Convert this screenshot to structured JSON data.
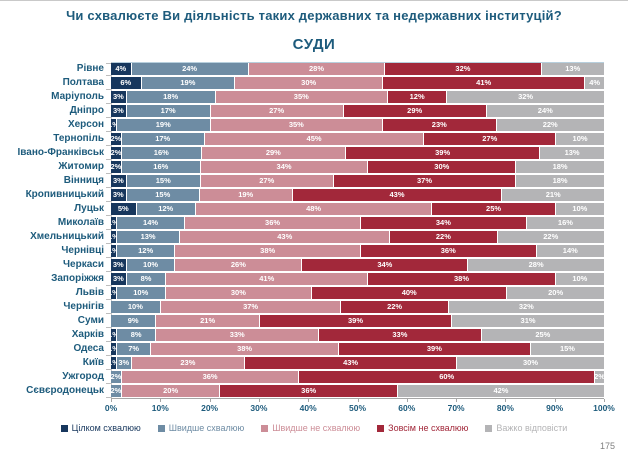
{
  "title": "Чи схвалюєте Ви діяльність таких державних та недержавних інституцій?",
  "subtitle": "СУДИ",
  "page_number": "175",
  "colors": {
    "title_text": "#1D5B7C",
    "axis_line": "#A6A6A6",
    "series": {
      "fully_approve": "#17375D",
      "rather_approve": "#6E8CA4",
      "rather_disapprove": "#CC8D97",
      "fully_disapprove": "#A2283A",
      "hard_to_say": "#B4B4B6"
    }
  },
  "chart_data": {
    "type": "bar",
    "stacked": true,
    "orientation": "horizontal",
    "title": "СУДИ",
    "value_suffix": "%",
    "xlim": [
      0,
      100
    ],
    "x_ticks": [
      "0%",
      "10%",
      "20%",
      "30%",
      "40%",
      "50%",
      "60%",
      "70%",
      "80%",
      "90%",
      "100%"
    ],
    "legend_position": "bottom",
    "categories": [
      "Рівне",
      "Полтава",
      "Маріуполь",
      "Дніпро",
      "Херсон",
      "Тернопіль",
      "Івано-Франківськ",
      "Житомир",
      "Вінниця",
      "Кропивницький",
      "Луцьк",
      "Миколаїв",
      "Хмельницький",
      "Чернівці",
      "Черкаси",
      "Запоріжжя",
      "Львів",
      "Чернігів",
      "Суми",
      "Харків",
      "Одеса",
      "Київ",
      "Ужгород",
      "Сєвєродонецьк"
    ],
    "series": [
      {
        "name": "Цілком схвалюю",
        "color_key": "fully_approve",
        "values": [
          4,
          6,
          3,
          3,
          1,
          2,
          2,
          2,
          3,
          3,
          5,
          1,
          1,
          1,
          3,
          3,
          1,
          0,
          0,
          1,
          1,
          1,
          0,
          0
        ]
      },
      {
        "name": "Швидше схвалюю",
        "color_key": "rather_approve",
        "values": [
          24,
          19,
          18,
          17,
          19,
          17,
          16,
          16,
          15,
          15,
          12,
          14,
          13,
          12,
          10,
          8,
          10,
          10,
          9,
          8,
          7,
          3,
          2,
          2
        ]
      },
      {
        "name": "Швидше не схвалюю",
        "color_key": "rather_disapprove",
        "values": [
          28,
          30,
          35,
          27,
          35,
          45,
          29,
          34,
          27,
          19,
          48,
          36,
          43,
          38,
          26,
          41,
          30,
          37,
          21,
          33,
          38,
          23,
          36,
          20
        ]
      },
      {
        "name": "Зовсім не схвалюю",
        "color_key": "fully_disapprove",
        "values": [
          32,
          41,
          12,
          29,
          23,
          27,
          39,
          30,
          37,
          43,
          25,
          34,
          22,
          36,
          34,
          38,
          40,
          22,
          39,
          33,
          39,
          43,
          60,
          36
        ]
      },
      {
        "name": "Важко відповісти",
        "color_key": "hard_to_say",
        "values": [
          13,
          4,
          32,
          24,
          22,
          10,
          13,
          18,
          18,
          21,
          10,
          16,
          22,
          14,
          28,
          10,
          20,
          32,
          31,
          25,
          15,
          30,
          2,
          42
        ]
      }
    ]
  }
}
